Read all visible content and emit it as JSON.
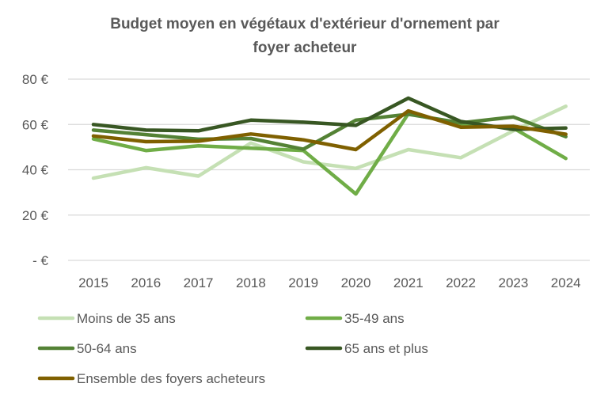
{
  "chart_data": {
    "type": "line",
    "title_lines": [
      "Budget moyen en végétaux d'extérieur d'ornement par",
      "foyer acheteur"
    ],
    "xlabel": "",
    "ylabel": "",
    "categories": [
      "2015",
      "2016",
      "2017",
      "2018",
      "2019",
      "2020",
      "2021",
      "2022",
      "2023",
      "2024"
    ],
    "ylim": [
      0,
      80
    ],
    "yticks": [
      0,
      20,
      40,
      60,
      80
    ],
    "ytick_labels": [
      "-  €",
      "20 €",
      "40 €",
      "60 €",
      "80 €"
    ],
    "grid": "horizontal",
    "legend_position": "bottom",
    "series": [
      {
        "name": "Moins de 35 ans",
        "color": "#c5e0b4",
        "values": [
          36.3,
          40.9,
          37.2,
          51.8,
          43.5,
          40.6,
          48.9,
          45.3,
          57.2,
          68.0
        ]
      },
      {
        "name": "35-49 ans",
        "color": "#70ad47",
        "values": [
          53.6,
          48.5,
          50.6,
          49.5,
          48.5,
          29.3,
          64.8,
          60.2,
          58.4,
          45.0
        ]
      },
      {
        "name": "50-64 ans",
        "color": "#548235",
        "values": [
          57.5,
          55.5,
          53.5,
          53.8,
          49.1,
          61.9,
          64.5,
          60.7,
          63.3,
          54.6
        ]
      },
      {
        "name": "65 ans et plus",
        "color": "#385723",
        "values": [
          60.0,
          57.5,
          57.2,
          61.9,
          61.0,
          59.6,
          71.6,
          61.3,
          57.8,
          58.4
        ]
      },
      {
        "name": "Ensemble des foyers acheteurs",
        "color": "#7f6000",
        "values": [
          54.9,
          52.4,
          52.6,
          55.8,
          53.2,
          48.9,
          66.0,
          58.8,
          59.2,
          55.7
        ]
      }
    ]
  }
}
